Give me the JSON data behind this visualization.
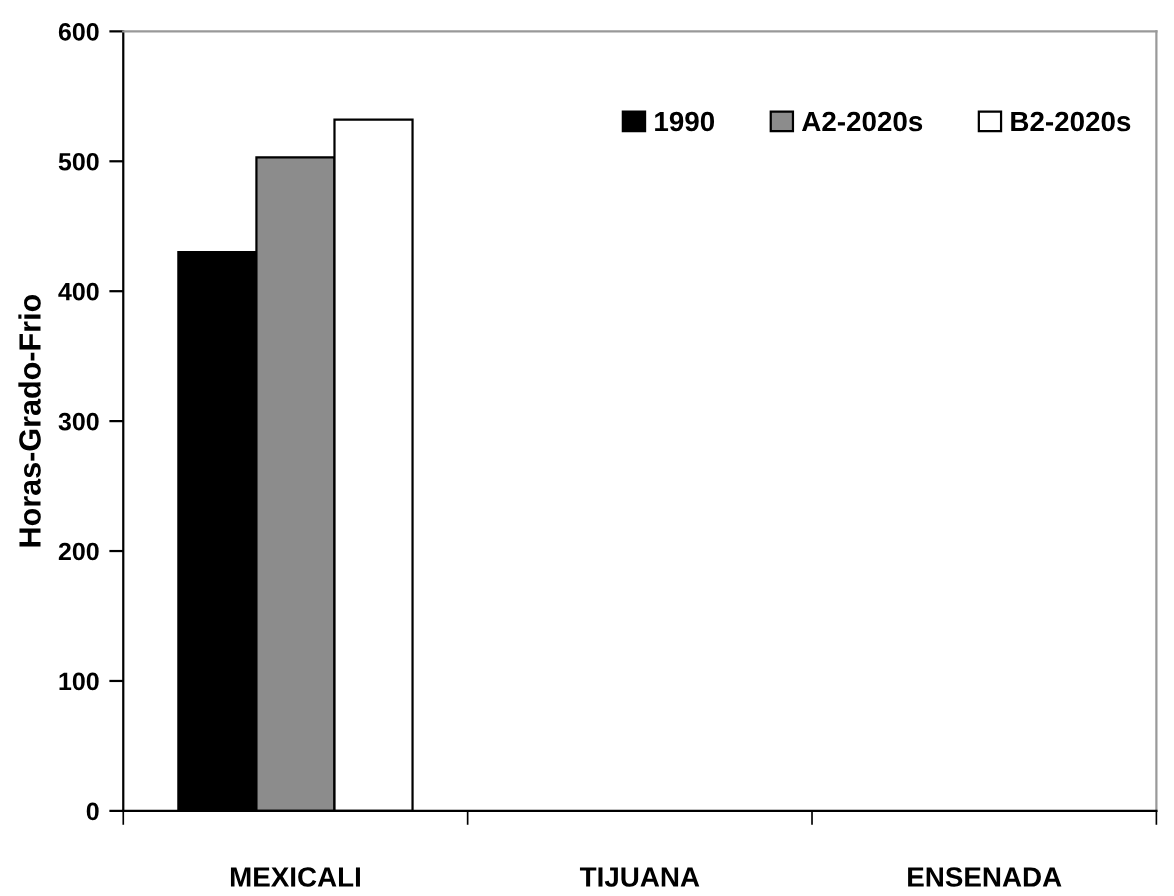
{
  "chart_data": {
    "type": "bar",
    "ylabel": "Horas-Grado-Frio",
    "categories": [
      "MEXICALI",
      "TIJUANA",
      "ENSENADA"
    ],
    "series": [
      {
        "name": "1990",
        "color": "#000000",
        "values": [
          430,
          null,
          null
        ]
      },
      {
        "name": "A2-2020s",
        "color": "#8c8c8c",
        "values": [
          503,
          null,
          null
        ]
      },
      {
        "name": "B2-2020s",
        "color": "#ffffff",
        "values": [
          532,
          null,
          null
        ]
      }
    ],
    "ylim": [
      0,
      600
    ],
    "yticks": [
      0,
      100,
      200,
      300,
      400,
      500,
      600
    ],
    "grid": false,
    "legend": "top right"
  }
}
